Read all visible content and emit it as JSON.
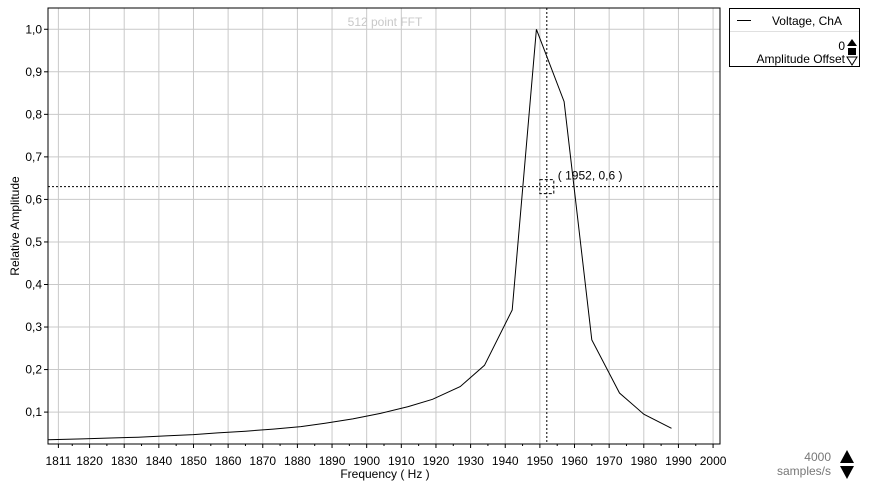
{
  "chart_data": {
    "type": "line",
    "title": "512 point FFT",
    "xlabel": "Frequency ( Hz )",
    "ylabel": "Relative Amplitude",
    "xlim": [
      1808,
      2002
    ],
    "ylim": [
      0.025,
      1.05
    ],
    "x_ticks": [
      1811,
      1820,
      1830,
      1840,
      1850,
      1860,
      1870,
      1880,
      1890,
      1900,
      1910,
      1920,
      1930,
      1940,
      1950,
      1960,
      1970,
      1980,
      1990,
      2000
    ],
    "x_tick_labels": [
      "1811",
      "1820",
      "1830",
      "1840",
      "1850",
      "1860",
      "1870",
      "1880",
      "1890",
      "1900",
      "1910",
      "1920",
      "1930",
      "1940",
      "1950",
      "1960",
      "1970",
      "1980",
      "1990",
      "2000"
    ],
    "y_ticks": [
      0.1,
      0.2,
      0.3,
      0.4,
      0.5,
      0.6,
      0.7,
      0.8,
      0.9,
      1.0
    ],
    "y_tick_labels": [
      "0,1",
      "0,2",
      "0,3",
      "0,4",
      "0,5",
      "0,6",
      "0,7",
      "0,8",
      "0,9",
      "1,0"
    ],
    "grid": true,
    "legend_position": "top-right",
    "series": [
      {
        "name": "Voltage, ChA",
        "color": "#000000",
        "x": [
          1808,
          1818,
          1826,
          1834,
          1842,
          1850,
          1857,
          1865,
          1873,
          1881,
          1888,
          1896,
          1904,
          1912,
          1919,
          1927,
          1934,
          1942,
          1949,
          1957,
          1965,
          1973,
          1980,
          1988
        ],
        "y": [
          0.035,
          0.037,
          0.039,
          0.041,
          0.044,
          0.047,
          0.051,
          0.055,
          0.06,
          0.066,
          0.074,
          0.084,
          0.097,
          0.113,
          0.13,
          0.16,
          0.21,
          0.34,
          1.0,
          0.83,
          0.27,
          0.145,
          0.095,
          0.062
        ]
      }
    ],
    "cursor": {
      "x": 1952,
      "y": 0.63,
      "label": "( 1952, 0,6 )"
    }
  },
  "legend": {
    "series_label": "Voltage, ChA",
    "offset_value": "0",
    "offset_label": "Amplitude Offset"
  },
  "sample_rate": {
    "value": "4000",
    "unit": "samples/s"
  }
}
